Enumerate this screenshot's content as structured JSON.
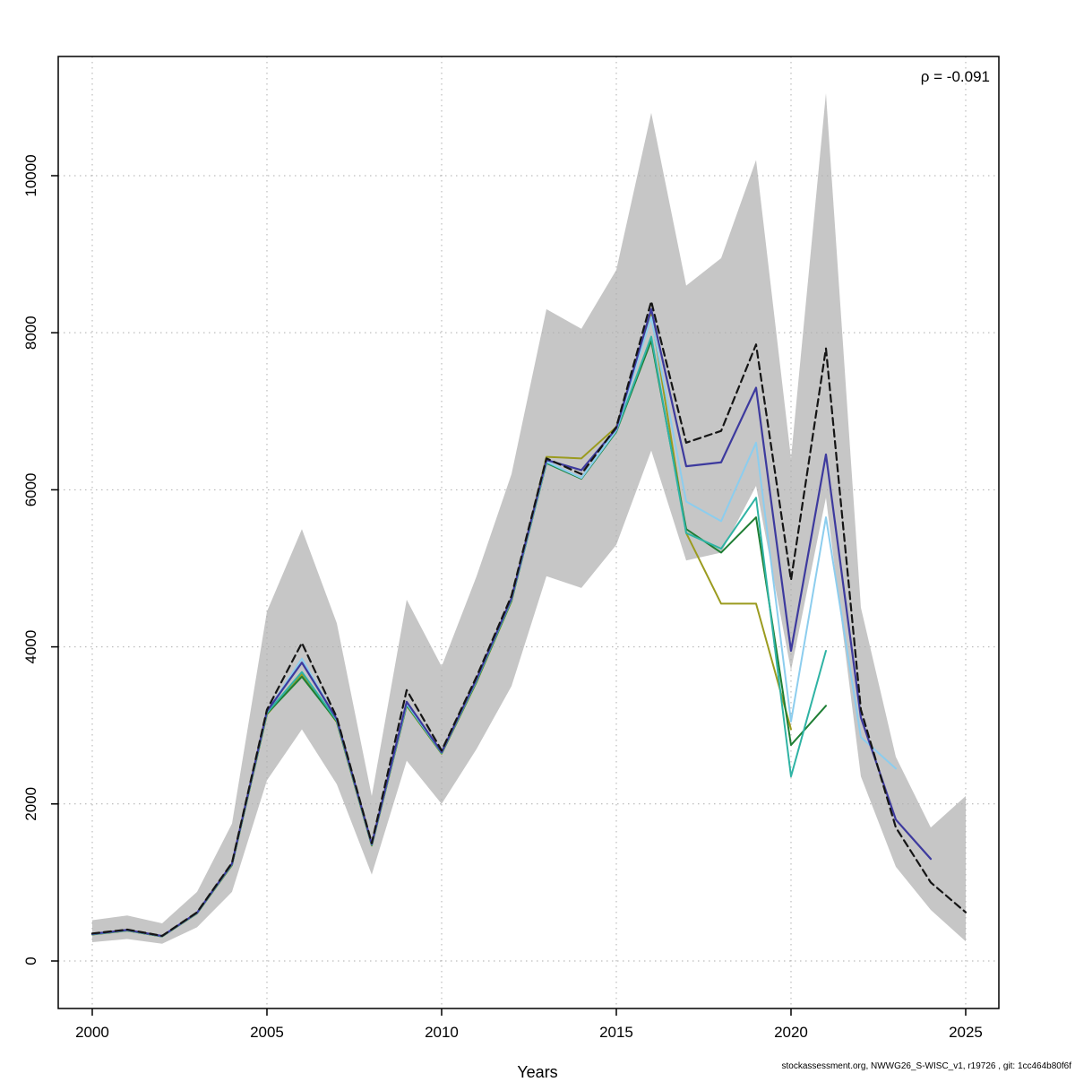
{
  "chart_data": {
    "type": "line",
    "title": "",
    "xlabel": "Years",
    "ylabel": "",
    "annotation": "ρ = -0.091",
    "footer": "stockassessment.org, NWWG26_S-WISC_v1, r19726 , git: 1cc464b80f6f",
    "grid": true,
    "legend": "none",
    "x_ticks": [
      2000,
      2005,
      2010,
      2015,
      2020,
      2025
    ],
    "y_ticks": [
      0,
      2000,
      4000,
      6000,
      8000,
      10000
    ],
    "years": [
      2000,
      2001,
      2002,
      2003,
      2004,
      2005,
      2006,
      2007,
      2008,
      2009,
      2010,
      2011,
      2012,
      2013,
      2014,
      2015,
      2016,
      2017,
      2018,
      2019,
      2020,
      2021,
      2022,
      2023,
      2024,
      2025
    ],
    "band": {
      "name": "confidence-band",
      "color": "#c6c6c6",
      "lower": [
        240,
        280,
        220,
        430,
        880,
        2300,
        2950,
        2250,
        1100,
        2550,
        2000,
        2700,
        3500,
        4900,
        4750,
        5300,
        6500,
        5100,
        5200,
        6050,
        3700,
        5900,
        2350,
        1200,
        650,
        250
      ],
      "upper": [
        520,
        580,
        480,
        880,
        1750,
        4450,
        5500,
        4300,
        2100,
        4600,
        3750,
        4900,
        6200,
        8300,
        8050,
        8800,
        10800,
        8600,
        8950,
        10200,
        6400,
        11050,
        4500,
        2600,
        1700,
        2100
      ]
    },
    "series": [
      {
        "name": "retro-peel-2020-olive",
        "color": "#9b9b1f",
        "width": 2,
        "values": [
          336,
          386,
          312,
          606,
          1220,
          3140,
          3650,
          3040,
          1470,
          3250,
          2640,
          3550,
          4580,
          6420,
          6400,
          6800,
          8250,
          5450,
          4550,
          4550,
          2950
        ]
      },
      {
        "name": "retro-peel-2021-green",
        "color": "#1e7e34",
        "width": 2,
        "values": [
          338,
          388,
          313,
          608,
          1225,
          3150,
          3620,
          3050,
          1475,
          3260,
          2645,
          3560,
          4590,
          6340,
          6140,
          6740,
          7900,
          5500,
          5200,
          5650,
          2750,
          3250
        ]
      },
      {
        "name": "retro-peel-2021-teal",
        "color": "#2fb3a4",
        "width": 2,
        "values": [
          340,
          390,
          315,
          610,
          1230,
          3160,
          3680,
          3060,
          1480,
          3270,
          2650,
          3570,
          4600,
          6350,
          6150,
          6750,
          7950,
          5450,
          5250,
          5900,
          2350,
          3950
        ]
      },
      {
        "name": "retro-peel-2023-skyblue",
        "color": "#8ccdee",
        "width": 2,
        "values": [
          342,
          392,
          316,
          612,
          1235,
          3170,
          3850,
          3070,
          1485,
          3280,
          2655,
          3580,
          4610,
          6360,
          6150,
          6760,
          8200,
          5850,
          5600,
          6600,
          3050,
          5650,
          2850,
          2450
        ]
      },
      {
        "name": "retro-peel-2024-purple",
        "color": "#3d3a9e",
        "width": 2.2,
        "values": [
          345,
          395,
          318,
          615,
          1240,
          3180,
          3800,
          3080,
          1490,
          3300,
          2660,
          3590,
          4620,
          6380,
          6250,
          6780,
          8300,
          6300,
          6350,
          7300,
          3950,
          6450,
          3100,
          1800,
          1300
        ]
      },
      {
        "name": "base-run",
        "color": "#151515",
        "width": 2.2,
        "dash": "8 5",
        "values": [
          350,
          400,
          320,
          620,
          1250,
          3200,
          4050,
          3100,
          1500,
          3450,
          2680,
          3620,
          4650,
          6400,
          6200,
          6800,
          8400,
          6600,
          6750,
          7850,
          4850,
          7800,
          3200,
          1700,
          1000,
          620
        ]
      }
    ],
    "layout": {
      "box": {
        "l": 65,
        "t": 63,
        "r": 1115,
        "b": 1125
      },
      "xrange": [
        1999.026,
        2025.949
      ],
      "yrange": [
        -605,
        11518
      ],
      "grid_color": "#aeaeae",
      "axis_color": "#000000",
      "tick_label_size": 17
    }
  }
}
